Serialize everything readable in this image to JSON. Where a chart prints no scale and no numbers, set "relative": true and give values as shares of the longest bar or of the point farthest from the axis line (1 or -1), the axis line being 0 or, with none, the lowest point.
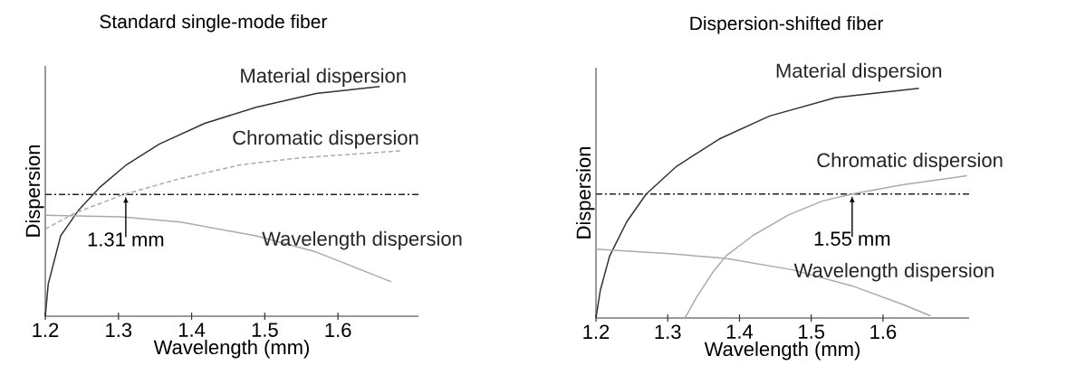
{
  "chart_data": [
    {
      "type": "line",
      "title": "Standard single-mode fiber",
      "xlabel": "Wavelength (mm)",
      "ylabel": "Dispersion",
      "relative": true,
      "tick_labels": "x",
      "xlim": [
        1.2,
        1.71
      ],
      "xticks": [
        1.2,
        1.3,
        1.4,
        1.5,
        1.6
      ],
      "series": [
        {
          "name": "Material dispersion",
          "color": "#333333",
          "line_style": "solid",
          "x": [
            1.2,
            1.204,
            1.221,
            1.245,
            1.274,
            1.311,
            1.356,
            1.418,
            1.488,
            1.57,
            1.657
          ],
          "values": [
            0,
            0.14,
            0.35,
            0.46,
            0.56,
            0.66,
            0.75,
            0.84,
            0.91,
            0.97,
            1.0
          ]
        },
        {
          "name": "Chromatic dispersion",
          "color": "#aaaaaa",
          "line_style": "dashed",
          "x": [
            1.2,
            1.241,
            1.307,
            1.385,
            1.468,
            1.549,
            1.685
          ],
          "values": [
            0.38,
            0.45,
            0.53,
            0.6,
            0.66,
            0.69,
            0.72
          ]
        },
        {
          "name": "Wavelength dispersion",
          "color": "#aaaaaa",
          "line_style": "solid",
          "x": [
            1.2,
            1.304,
            1.385,
            1.488,
            1.57,
            1.673
          ],
          "values": [
            0.44,
            0.433,
            0.41,
            0.35,
            0.28,
            0.15
          ]
        }
      ],
      "ref_lines": [
        {
          "axis": "y",
          "value": 0.53,
          "color": "#222222",
          "line_style": "dashdot"
        }
      ],
      "annotations": [
        {
          "text": "1.31 mm",
          "x": 1.31,
          "y": 0.53
        }
      ]
    },
    {
      "type": "line",
      "title": "Dispersion-shifted fiber",
      "xlabel": "Wavelength (mm)",
      "ylabel": "Dispersion",
      "relative": true,
      "tick_labels": "x",
      "xlim": [
        1.2,
        1.72
      ],
      "xticks": [
        1.2,
        1.3,
        1.4,
        1.5,
        1.6
      ],
      "series": [
        {
          "name": "Material dispersion",
          "color": "#333333",
          "line_style": "solid",
          "x": [
            1.2,
            1.206,
            1.219,
            1.243,
            1.27,
            1.312,
            1.372,
            1.442,
            1.534,
            1.65
          ],
          "values": [
            0,
            0.12,
            0.27,
            0.42,
            0.54,
            0.66,
            0.78,
            0.88,
            0.96,
            1.0
          ]
        },
        {
          "name": "Chromatic dispersion",
          "color": "#aaaaaa",
          "line_style": "solid",
          "x": [
            1.324,
            1.34,
            1.363,
            1.381,
            1.419,
            1.469,
            1.516,
            1.557,
            1.627,
            1.717
          ],
          "values": [
            0,
            0.09,
            0.2,
            0.27,
            0.36,
            0.45,
            0.51,
            0.54,
            0.58,
            0.62
          ]
        },
        {
          "name": "Wavelength dispersion",
          "color": "#aaaaaa",
          "line_style": "solid",
          "x": [
            1.2,
            1.303,
            1.381,
            1.474,
            1.557,
            1.627,
            1.666
          ],
          "values": [
            0.3,
            0.28,
            0.26,
            0.21,
            0.14,
            0.06,
            0.01
          ]
        }
      ],
      "ref_lines": [
        {
          "axis": "y",
          "value": 0.54,
          "color": "#222222",
          "line_style": "dashdot"
        }
      ],
      "annotations": [
        {
          "text": "1.55 mm",
          "x": 1.557,
          "y": 0.54
        }
      ]
    }
  ]
}
